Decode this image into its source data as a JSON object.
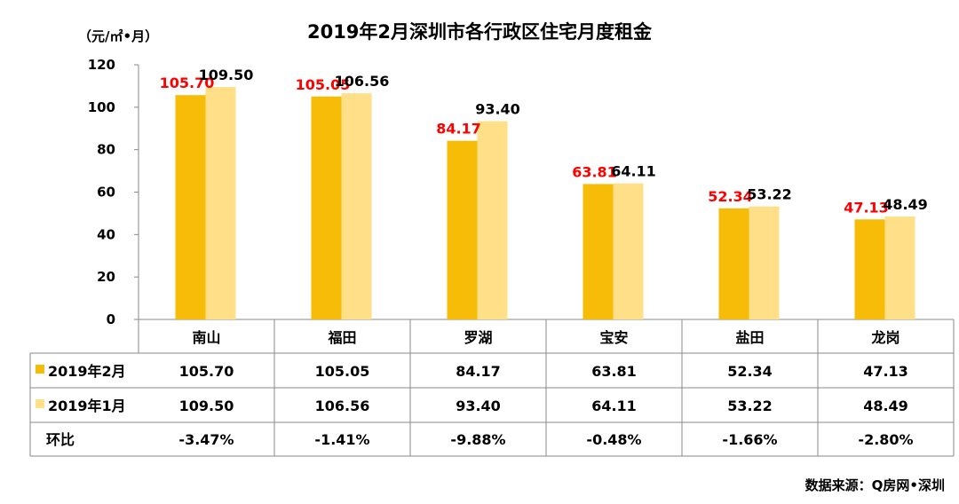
{
  "title": "2019年2月深圳市各行政区住宅月度租金",
  "unit_label": "（元/㎡•月）",
  "source": "数据来源：Q房网•深圳",
  "colors": {
    "feb": "#F7BC08",
    "jan": "#FFDF87",
    "label_feb": "#FF0000",
    "label_jan": "#000000",
    "grid": "#888888"
  },
  "chart_data": {
    "type": "bar",
    "title": "2019年2月深圳市各行政区住宅月度租金",
    "ylabel": "（元/㎡•月）",
    "ylim": [
      0,
      120
    ],
    "yticks": [
      0,
      20,
      40,
      60,
      80,
      100,
      120
    ],
    "grid": false,
    "legend": "table-left",
    "categories": [
      "南山",
      "福田",
      "罗湖",
      "宝安",
      "盐田",
      "龙岗"
    ],
    "series": [
      {
        "name": "2019年2月",
        "values": [
          105.7,
          105.05,
          84.17,
          63.81,
          52.34,
          47.13
        ],
        "labels": [
          "105.70",
          "105.05",
          "84.17",
          "63.81",
          "52.34",
          "47.13"
        ]
      },
      {
        "name": "2019年1月",
        "values": [
          109.5,
          106.56,
          93.4,
          64.11,
          53.22,
          48.49
        ],
        "labels": [
          "109.50",
          "106.56",
          "93.40",
          "64.11",
          "53.22",
          "48.49"
        ]
      }
    ],
    "table": {
      "row_feb": {
        "label": "2019年2月",
        "cells": [
          "105.70",
          "105.05",
          "84.17",
          "63.81",
          "52.34",
          "47.13"
        ]
      },
      "row_jan": {
        "label": "2019年1月",
        "cells": [
          "109.50",
          "106.56",
          "93.40",
          "64.11",
          "53.22",
          "48.49"
        ]
      },
      "row_mom": {
        "label": "环比",
        "cells": [
          "-3.47%",
          "-1.41%",
          "-9.88%",
          "-0.48%",
          "-1.66%",
          "-2.80%"
        ]
      }
    }
  }
}
